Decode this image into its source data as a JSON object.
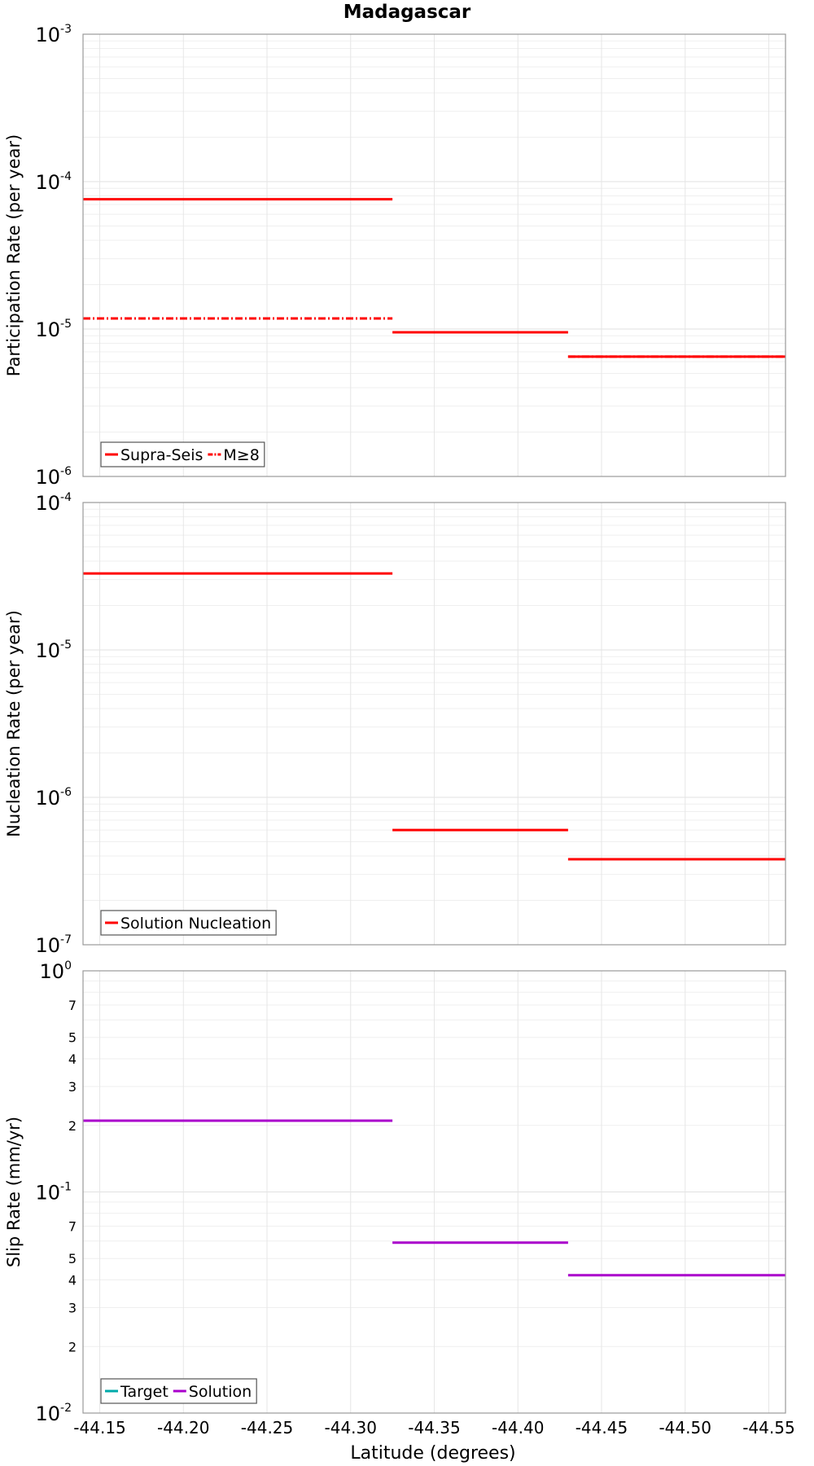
{
  "chart_data": {
    "type": "line",
    "title": "Madagascar",
    "xlabel": "Latitude (degrees)",
    "xlim": [
      -44.14,
      -44.56
    ],
    "x_ticks": [
      "-44.15",
      "-44.20",
      "-44.25",
      "-44.30",
      "-44.35",
      "-44.40",
      "-44.45",
      "-44.50",
      "-44.55"
    ],
    "x_tick_values": [
      -44.15,
      -44.2,
      -44.25,
      -44.3,
      -44.35,
      -44.4,
      -44.45,
      -44.5,
      -44.55
    ],
    "panels": [
      {
        "ylabel": "Participation Rate (per year)",
        "yscale": "log",
        "ylim_exp": [
          -6,
          -3
        ],
        "y_ticks": [
          {
            "exp": -3,
            "base": "10",
            "sup": "-3"
          },
          {
            "exp": -4,
            "base": "10",
            "sup": "-4"
          },
          {
            "exp": -5,
            "base": "10",
            "sup": "-5"
          },
          {
            "exp": -6,
            "base": "10",
            "sup": "-6"
          }
        ],
        "minor_labels": [],
        "legend": [
          {
            "name": "Supra-Seis",
            "color": "#ff0000",
            "dash": "solid"
          },
          {
            "name": "M≥8",
            "color": "#ff0000",
            "dash": "dashdot"
          }
        ],
        "series": [
          {
            "name": "Supra-Seis",
            "color": "#ff0000",
            "dash": "solid",
            "segments": [
              [
                -44.14,
                -44.325,
                7.6e-05
              ],
              [
                -44.325,
                -44.43,
                9.5e-06
              ],
              [
                -44.43,
                -44.56,
                6.5e-06
              ]
            ]
          },
          {
            "name": "M≥8",
            "color": "#ff0000",
            "dash": "dashdot",
            "segments": [
              [
                -44.14,
                -44.325,
                1.18e-05
              ],
              [
                -44.43,
                -44.56,
                6.5e-06
              ]
            ]
          }
        ]
      },
      {
        "ylabel": "Nucleation Rate (per year)",
        "yscale": "log",
        "ylim_exp": [
          -7,
          -4
        ],
        "y_ticks": [
          {
            "exp": -4,
            "base": "10",
            "sup": "-4"
          },
          {
            "exp": -5,
            "base": "10",
            "sup": "-5"
          },
          {
            "exp": -6,
            "base": "10",
            "sup": "-6"
          },
          {
            "exp": -7,
            "base": "10",
            "sup": "-7"
          }
        ],
        "minor_labels": [],
        "legend": [
          {
            "name": "Solution Nucleation",
            "color": "#ff0000",
            "dash": "solid"
          }
        ],
        "series": [
          {
            "name": "Solution Nucleation",
            "color": "#ff0000",
            "dash": "solid",
            "segments": [
              [
                -44.14,
                -44.325,
                3.3e-05
              ],
              [
                -44.325,
                -44.43,
                6e-07
              ],
              [
                -44.43,
                -44.56,
                3.8e-07
              ]
            ]
          }
        ]
      },
      {
        "ylabel": "Slip Rate (mm/yr)",
        "yscale": "log",
        "ylim_exp": [
          -2,
          0
        ],
        "y_ticks": [
          {
            "exp": 0,
            "base": "10",
            "sup": "0"
          },
          {
            "exp": -1,
            "base": "10",
            "sup": "-1"
          },
          {
            "exp": -2,
            "base": "10",
            "sup": "-2"
          }
        ],
        "minor_labels": [
          {
            "value": 0.7,
            "label": "7"
          },
          {
            "value": 0.5,
            "label": "5"
          },
          {
            "value": 0.4,
            "label": "4"
          },
          {
            "value": 0.3,
            "label": "3"
          },
          {
            "value": 0.2,
            "label": "2"
          },
          {
            "value": 0.07,
            "label": "7"
          },
          {
            "value": 0.05,
            "label": "5"
          },
          {
            "value": 0.04,
            "label": "4"
          },
          {
            "value": 0.03,
            "label": "3"
          },
          {
            "value": 0.02,
            "label": "2"
          }
        ],
        "legend": [
          {
            "name": "Target",
            "color": "#00aaaa",
            "dash": "solid"
          },
          {
            "name": "Solution",
            "color": "#aa00cc",
            "dash": "solid"
          }
        ],
        "series": [
          {
            "name": "Solution",
            "color": "#aa00cc",
            "dash": "solid",
            "segments": [
              [
                -44.14,
                -44.325,
                0.21
              ],
              [
                -44.325,
                -44.43,
                0.059
              ],
              [
                -44.43,
                -44.56,
                0.042
              ]
            ]
          }
        ]
      }
    ]
  }
}
